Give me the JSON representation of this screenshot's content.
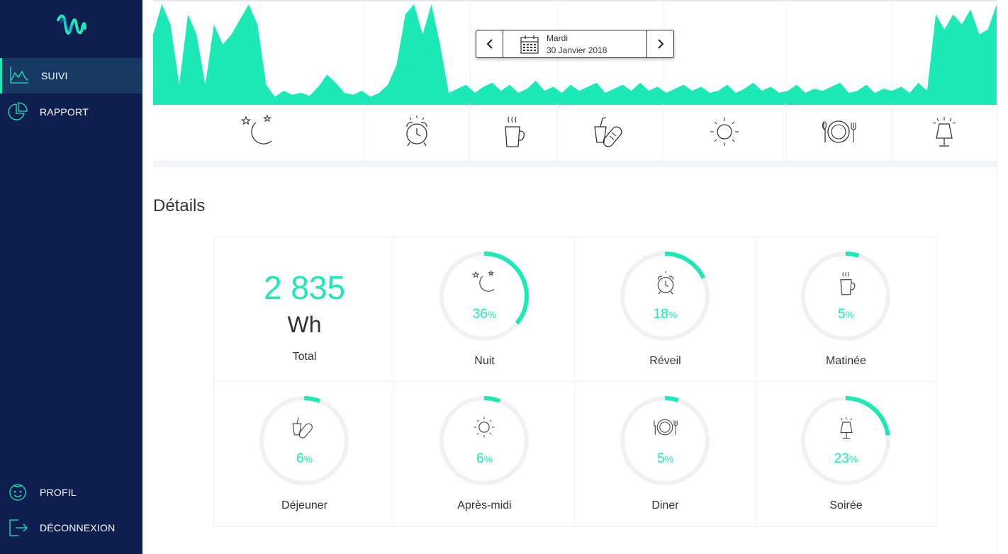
{
  "sidebar": {
    "logo_icon": "wave-logo-icon",
    "items": [
      {
        "label": "SUIVI",
        "icon": "line-chart-icon",
        "active": true
      },
      {
        "label": "RAPPORT",
        "icon": "pie-chart-icon",
        "active": false
      },
      {
        "label": "PROFIL",
        "icon": "face-icon",
        "active": false
      },
      {
        "label": "DÉCONNEXION",
        "icon": "logout-icon",
        "active": false
      }
    ]
  },
  "date_picker": {
    "day": "Mardi",
    "date": "30 Janvier 2018",
    "prev_icon": "chevron-left-icon",
    "next_icon": "chevron-right-icon",
    "calendar_icon": "calendar-icon"
  },
  "periods": [
    {
      "icon": "moon-stars-icon"
    },
    {
      "icon": "alarm-clock-icon"
    },
    {
      "icon": "coffee-cup-icon"
    },
    {
      "icon": "drink-sandwich-icon"
    },
    {
      "icon": "sun-icon"
    },
    {
      "icon": "plate-cutlery-icon"
    },
    {
      "icon": "lamp-icon"
    }
  ],
  "details": {
    "title": "Détails",
    "total": {
      "value": "2 835",
      "unit": "Wh",
      "label": "Total"
    },
    "items": [
      {
        "label": "Nuit",
        "percent": 36,
        "percent_text": "36",
        "unit": "%",
        "icon": "moon-stars-icon"
      },
      {
        "label": "Réveil",
        "percent": 18,
        "percent_text": "18",
        "unit": "%",
        "icon": "alarm-clock-icon"
      },
      {
        "label": "Matinée",
        "percent": 5,
        "percent_text": "5",
        "unit": "%",
        "icon": "coffee-cup-icon"
      },
      {
        "label": "Déjeuner",
        "percent": 6,
        "percent_text": "6",
        "unit": "%",
        "icon": "drink-sandwich-icon"
      },
      {
        "label": "Après-midi",
        "percent": 6,
        "percent_text": "6",
        "unit": "%",
        "icon": "sun-icon"
      },
      {
        "label": "Diner",
        "percent": 5,
        "percent_text": "5",
        "unit": "%",
        "icon": "plate-cutlery-icon"
      },
      {
        "label": "Soirée",
        "percent": 23,
        "percent_text": "23",
        "unit": "%",
        "icon": "lamp-icon"
      }
    ]
  },
  "colors": {
    "accent": "#1de9b6",
    "sidebar_bg": "#0e1e4e",
    "sidebar_active": "#183864",
    "ring_track": "#f1f1f1",
    "text": "#333333"
  },
  "chart_data": {
    "type": "area",
    "y": [
      70,
      100,
      80,
      20,
      90,
      70,
      20,
      80,
      60,
      70,
      85,
      100,
      80,
      20,
      8,
      14,
      10,
      12,
      9,
      18,
      30,
      22,
      12,
      10,
      14,
      8,
      12,
      20,
      40,
      90,
      100,
      70,
      100,
      60,
      12,
      16,
      20,
      12,
      18,
      22,
      14,
      20,
      12,
      16,
      24,
      14,
      18,
      12,
      20,
      14,
      18,
      22,
      12,
      16,
      20,
      14,
      22,
      14,
      18,
      12,
      16,
      20,
      14,
      18,
      12,
      14,
      20,
      12,
      16,
      22,
      14,
      18,
      12,
      14,
      20,
      12,
      16,
      14,
      18,
      22,
      12,
      14,
      20,
      12,
      16,
      14,
      18,
      12,
      22,
      14,
      90,
      75,
      90,
      80,
      95,
      70,
      75,
      100
    ]
  }
}
